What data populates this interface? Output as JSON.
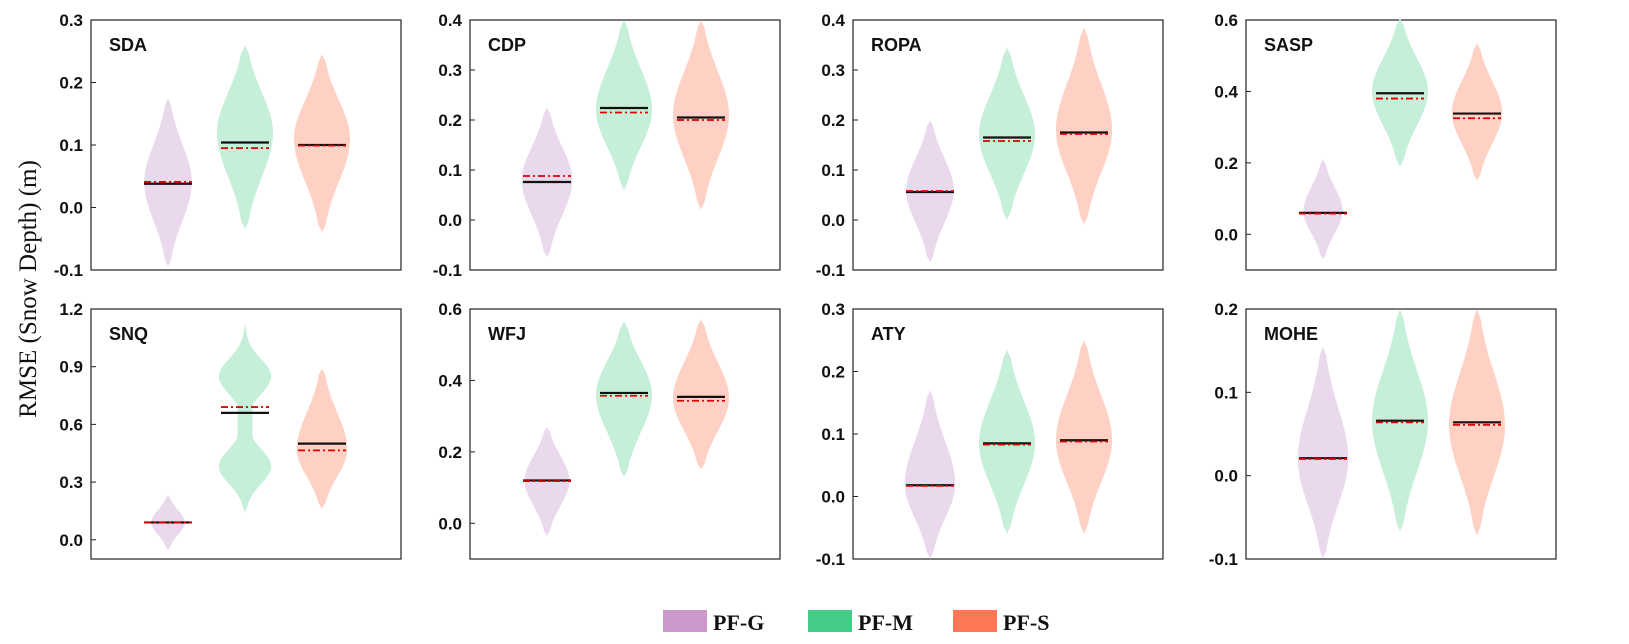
{
  "chart_data": {
    "type": "violin",
    "ylabel": "RMSE (Snow Depth) (m)",
    "legend": {
      "placement": "bottom-center",
      "items": [
        {
          "label": "PF-G",
          "color": "#cc99cc",
          "fill": "#ead9ec"
        },
        {
          "label": "PF-M",
          "color": "#44cc88",
          "fill": "#c6efd9"
        },
        {
          "label": "PF-S",
          "color": "#ff7755",
          "fill": "#ffd0c4"
        }
      ]
    },
    "line_styles": {
      "median": "solid black",
      "mean": "dash-dot red"
    },
    "panels": [
      {
        "title": "SDA",
        "ylim": [
          -0.1,
          0.3
        ],
        "yticks": [
          "-0.1",
          "0.0",
          "0.1",
          "0.2",
          "0.3"
        ],
        "series": [
          {
            "name": "PF-G",
            "min": -0.095,
            "max": 0.175,
            "mode": 0.04,
            "width": 0.85,
            "median": 0.038,
            "mean": 0.041
          },
          {
            "name": "PF-M",
            "min": -0.035,
            "max": 0.26,
            "mode": 0.12,
            "width": 1.0,
            "median": 0.104,
            "mean": 0.095
          },
          {
            "name": "PF-S",
            "min": -0.04,
            "max": 0.245,
            "mode": 0.11,
            "width": 1.0,
            "median": 0.1,
            "mean": 0.099
          }
        ]
      },
      {
        "title": "CDP",
        "ylim": [
          -0.1,
          0.4
        ],
        "yticks": [
          "-0.1",
          "0.0",
          "0.1",
          "0.2",
          "0.3",
          "0.4"
        ],
        "series": [
          {
            "name": "PF-G",
            "min": -0.075,
            "max": 0.225,
            "mode": 0.08,
            "width": 0.9,
            "median": 0.076,
            "mean": 0.088
          },
          {
            "name": "PF-M",
            "min": 0.06,
            "max": 0.4,
            "mode": 0.22,
            "width": 1.0,
            "median": 0.224,
            "mean": 0.215
          },
          {
            "name": "PF-S",
            "min": 0.02,
            "max": 0.4,
            "mode": 0.21,
            "width": 1.0,
            "median": 0.205,
            "mean": 0.2
          }
        ]
      },
      {
        "title": "ROPA",
        "ylim": [
          -0.1,
          0.4
        ],
        "yticks": [
          "-0.1",
          "0.0",
          "0.1",
          "0.2",
          "0.3",
          "0.4"
        ],
        "series": [
          {
            "name": "PF-G",
            "min": -0.085,
            "max": 0.2,
            "mode": 0.06,
            "width": 0.85,
            "median": 0.056,
            "mean": 0.058
          },
          {
            "name": "PF-M",
            "min": 0.0,
            "max": 0.345,
            "mode": 0.17,
            "width": 1.0,
            "median": 0.165,
            "mean": 0.158
          },
          {
            "name": "PF-S",
            "min": -0.01,
            "max": 0.385,
            "mode": 0.18,
            "width": 1.0,
            "median": 0.175,
            "mean": 0.172
          }
        ]
      },
      {
        "title": "SASP",
        "ylim": [
          -0.1,
          0.6
        ],
        "yticks": [
          "0.0",
          "0.2",
          "0.4",
          "0.6"
        ],
        "series": [
          {
            "name": "PF-G",
            "min": -0.07,
            "max": 0.21,
            "mode": 0.065,
            "width": 0.7,
            "median": 0.06,
            "mean": 0.058
          },
          {
            "name": "PF-M",
            "min": 0.19,
            "max": 0.605,
            "mode": 0.4,
            "width": 1.0,
            "median": 0.395,
            "mean": 0.38
          },
          {
            "name": "PF-S",
            "min": 0.15,
            "max": 0.535,
            "mode": 0.34,
            "width": 0.9,
            "median": 0.338,
            "mean": 0.325
          }
        ]
      },
      {
        "title": "SNQ",
        "ylim": [
          -0.1,
          1.2
        ],
        "yticks": [
          "0.0",
          "0.3",
          "0.6",
          "0.9",
          "1.2"
        ],
        "series": [
          {
            "name": "PF-G",
            "min": -0.05,
            "max": 0.23,
            "mode": 0.09,
            "width": 0.6,
            "median": 0.09,
            "mean": 0.09
          },
          {
            "name": "PF-M",
            "min": 0.13,
            "max": 1.13,
            "mode": 0.85,
            "width": 0.95,
            "bimodal": [
              0.38,
              0.85
            ],
            "median": 0.66,
            "mean": 0.69
          },
          {
            "name": "PF-S",
            "min": 0.16,
            "max": 0.89,
            "mode": 0.47,
            "width": 0.9,
            "median": 0.5,
            "mean": 0.465
          }
        ]
      },
      {
        "title": "WFJ",
        "ylim": [
          -0.1,
          0.6
        ],
        "yticks": [
          "0.0",
          "0.2",
          "0.4",
          "0.6"
        ],
        "series": [
          {
            "name": "PF-G",
            "min": -0.035,
            "max": 0.27,
            "mode": 0.12,
            "width": 0.8,
            "median": 0.12,
            "mean": 0.118
          },
          {
            "name": "PF-M",
            "min": 0.13,
            "max": 0.565,
            "mode": 0.36,
            "width": 1.0,
            "median": 0.365,
            "mean": 0.357
          },
          {
            "name": "PF-S",
            "min": 0.15,
            "max": 0.57,
            "mode": 0.35,
            "width": 1.0,
            "median": 0.354,
            "mean": 0.343
          }
        ]
      },
      {
        "title": "ATY",
        "ylim": [
          -0.1,
          0.3
        ],
        "yticks": [
          "-0.1",
          "0.0",
          "0.1",
          "0.2",
          "0.3"
        ],
        "series": [
          {
            "name": "PF-G",
            "min": -0.1,
            "max": 0.17,
            "mode": 0.02,
            "width": 0.9,
            "median": 0.018,
            "mean": 0.017
          },
          {
            "name": "PF-M",
            "min": -0.06,
            "max": 0.235,
            "mode": 0.085,
            "width": 1.0,
            "median": 0.085,
            "mean": 0.083
          },
          {
            "name": "PF-S",
            "min": -0.06,
            "max": 0.25,
            "mode": 0.09,
            "width": 1.0,
            "median": 0.09,
            "mean": 0.088
          }
        ]
      },
      {
        "title": "MOHE",
        "ylim": [
          -0.1,
          0.2
        ],
        "yticks": [
          "-0.1",
          "0.0",
          "0.1",
          "0.2"
        ],
        "series": [
          {
            "name": "PF-G",
            "min": -0.1,
            "max": 0.155,
            "mode": 0.02,
            "width": 0.9,
            "median": 0.021,
            "mean": 0.02
          },
          {
            "name": "PF-M",
            "min": -0.068,
            "max": 0.2,
            "mode": 0.065,
            "width": 1.0,
            "median": 0.066,
            "mean": 0.064
          },
          {
            "name": "PF-S",
            "min": -0.072,
            "max": 0.2,
            "mode": 0.06,
            "width": 1.0,
            "median": 0.064,
            "mean": 0.061
          }
        ]
      }
    ]
  }
}
